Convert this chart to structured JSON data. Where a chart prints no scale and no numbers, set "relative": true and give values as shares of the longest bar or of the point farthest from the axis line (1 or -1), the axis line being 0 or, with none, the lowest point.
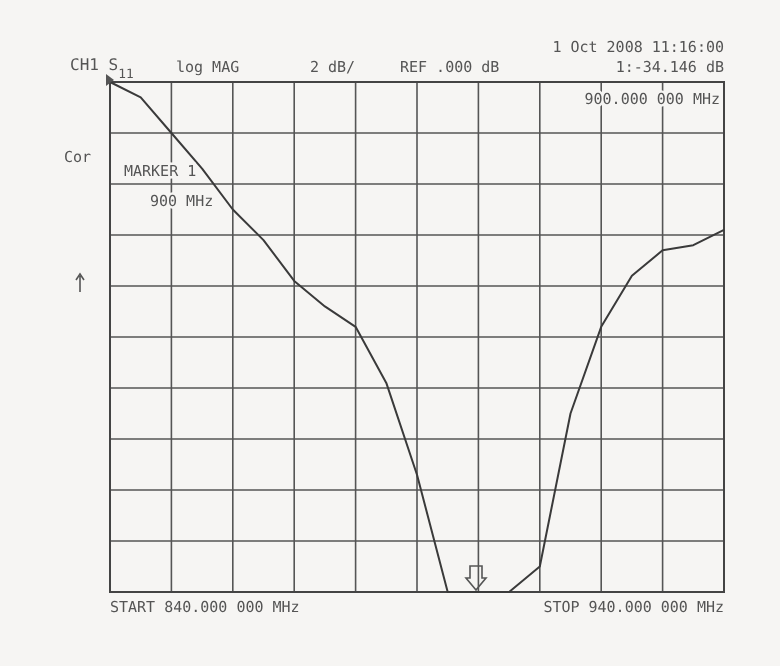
{
  "chart_data": {
    "type": "line",
    "title": "CH1 S$_{11}$",
    "relative": true,
    "grid": true,
    "categories": [
      null,
      null,
      null,
      null,
      null,
      null,
      null,
      null,
      null,
      null,
      null,
      null,
      null,
      null,
      null,
      null,
      null,
      null,
      null,
      null,
      null
    ],
    "series": [
      {
        "color": "#3a3a3a",
        "values": [
          1,
          0.97,
          0.9,
          0.83,
          0.75,
          0.69,
          0.61,
          0.56,
          0.52,
          0.41,
          0.23,
          0,
          0,
          0,
          0.05,
          0.35,
          0.52,
          0.62,
          0.67,
          0.68,
          0.71
        ]
      }
    ],
    "annotations": [
      "log MAG",
      "2 dB/",
      "REF .000 dB",
      "1 Oct 2008 11:16:00",
      "1:-34.146 dB",
      "900.000 000 MHz",
      "Cor",
      "MARKER 1",
      "900 MHz",
      "START 840.000 000 MHz",
      "STOP 940.000 000 MHz"
    ]
  }
}
